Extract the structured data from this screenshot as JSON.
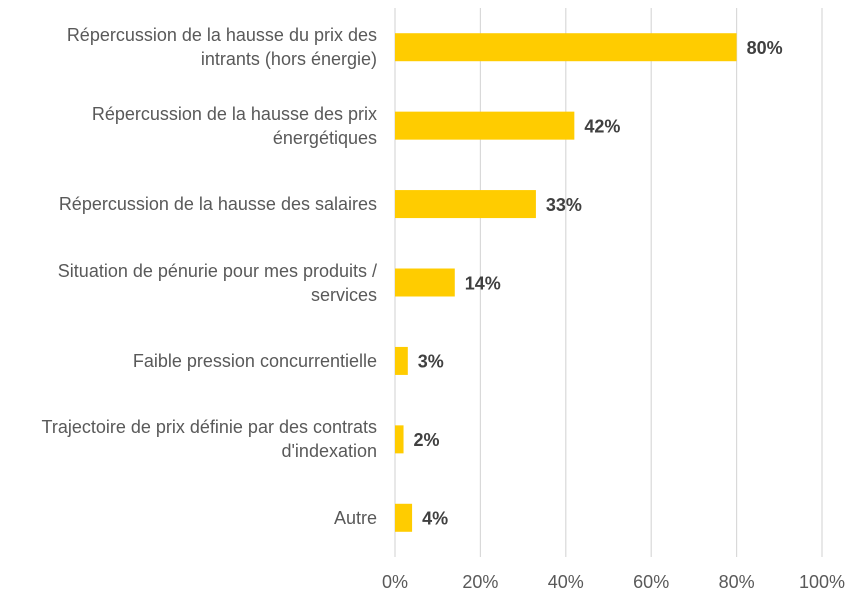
{
  "chart_data": {
    "type": "bar",
    "orientation": "horizontal",
    "categories": [
      "Répercussion de la hausse du prix des intrants (hors énergie)",
      "Répercussion de la hausse des prix énergétiques",
      "Répercussion de la hausse des salaires",
      "Situation de pénurie pour mes produits / services",
      "Faible pression concurrentielle",
      "Trajectoire de prix définie par des contrats d'indexation",
      "Autre"
    ],
    "values": [
      80,
      42,
      33,
      14,
      3,
      2,
      4
    ],
    "value_labels": [
      "80%",
      "42%",
      "33%",
      "14%",
      "3%",
      "2%",
      "4%"
    ],
    "color": "#ffcc00",
    "xlim": [
      0,
      100
    ],
    "xticks": [
      {
        "value": 0,
        "label": "0%"
      },
      {
        "value": 20,
        "label": "20%"
      },
      {
        "value": 40,
        "label": "40%"
      },
      {
        "value": 60,
        "label": "60%"
      },
      {
        "value": 80,
        "label": "80%"
      },
      {
        "value": 100,
        "label": "100%"
      }
    ],
    "grid": true
  }
}
